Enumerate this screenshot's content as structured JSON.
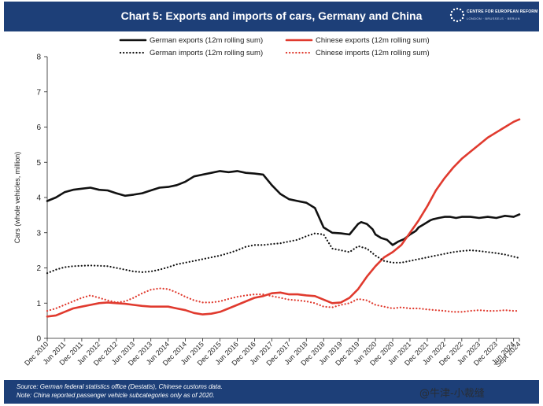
{
  "header": {
    "title": "Chart 5: Exports and imports of cars, Germany and China"
  },
  "logo": {
    "name": "CENTRE FOR EUROPEAN REFORM",
    "cities": "LONDON · BRUSSELS · BERLIN"
  },
  "footer": {
    "source": "Source: German federal statistics office (Destatis), Chinese customs data.",
    "note": "Note: China reported passenger vehicle subcategories only as of 2020."
  },
  "watermark": "@牛津-小裁缝",
  "colors": {
    "brand": "#1d3f78",
    "german": "#111111",
    "chinese": "#e03a2e"
  },
  "chart_data": {
    "type": "line",
    "title": "Chart 5: Exports and imports of cars, Germany and China",
    "xlabel": "",
    "ylabel": "Cars (whole vehicles, million)",
    "ylim": [
      0,
      8
    ],
    "yticks": [
      0,
      1,
      2,
      3,
      4,
      5,
      6,
      7,
      8
    ],
    "grid": false,
    "legend_position": "top",
    "xlim": [
      0,
      164
    ],
    "categories": [
      "Dec 2010",
      "Jun 2011",
      "Dec 2011",
      "Jun 2012",
      "Dec 2012",
      "Jun 2013",
      "Dec 2013",
      "Jun 2014",
      "Dec 2014",
      "Jun 2015",
      "Dec 2015",
      "Jun 2016",
      "Dec 2016",
      "Jun 2017",
      "Dec 2017",
      "Jun 2018",
      "Dec 2018",
      "Jun 2019",
      "Dec 2019",
      "Jun 2020",
      "Dec 2020",
      "Jun 2021",
      "Dec 2021",
      "Jun 2022",
      "Dec 2022",
      "Jun 2023",
      "Dec 2023",
      "Jun 2024",
      "Sept 2024"
    ],
    "series": [
      {
        "name": "German exports (12m rolling sum)",
        "style": "solid",
        "color": "#111111",
        "x": [
          0,
          3,
          6,
          9,
          12,
          15,
          18,
          21,
          24,
          27,
          30,
          33,
          36,
          39,
          42,
          45,
          48,
          51,
          54,
          57,
          60,
          63,
          66,
          69,
          72,
          75,
          78,
          81,
          84,
          87,
          90,
          93,
          96,
          99,
          102,
          105,
          108,
          109,
          111,
          113,
          114,
          116,
          118,
          120,
          122,
          124,
          126,
          128,
          129,
          131,
          133,
          134,
          136,
          138,
          140,
          142,
          144,
          147,
          150,
          153,
          156,
          159,
          162,
          164
        ],
        "y": [
          3.9,
          4.0,
          4.15,
          4.22,
          4.25,
          4.28,
          4.22,
          4.2,
          4.12,
          4.05,
          4.08,
          4.12,
          4.2,
          4.28,
          4.3,
          4.35,
          4.45,
          4.6,
          4.65,
          4.7,
          4.75,
          4.72,
          4.75,
          4.7,
          4.68,
          4.65,
          4.35,
          4.1,
          3.95,
          3.9,
          3.85,
          3.7,
          3.15,
          3.0,
          2.98,
          2.95,
          3.25,
          3.3,
          3.25,
          3.1,
          2.95,
          2.85,
          2.8,
          2.65,
          2.75,
          2.82,
          2.95,
          3.05,
          3.15,
          3.25,
          3.35,
          3.38,
          3.42,
          3.45,
          3.45,
          3.42,
          3.45,
          3.45,
          3.42,
          3.45,
          3.42,
          3.48,
          3.45,
          3.52
        ]
      },
      {
        "name": "Chinese exports (12m rolling sum)",
        "style": "solid",
        "color": "#e03a2e",
        "x": [
          0,
          3,
          6,
          9,
          12,
          15,
          18,
          21,
          24,
          27,
          30,
          33,
          36,
          39,
          42,
          45,
          48,
          51,
          54,
          57,
          60,
          63,
          66,
          69,
          72,
          75,
          78,
          81,
          84,
          87,
          90,
          93,
          96,
          99,
          102,
          105,
          108,
          111,
          114,
          117,
          120,
          123,
          126,
          129,
          132,
          135,
          138,
          141,
          144,
          147,
          150,
          153,
          156,
          159,
          162,
          164
        ],
        "y": [
          0.62,
          0.65,
          0.75,
          0.85,
          0.9,
          0.95,
          1.0,
          1.02,
          1.0,
          0.98,
          0.95,
          0.92,
          0.9,
          0.9,
          0.9,
          0.85,
          0.8,
          0.72,
          0.68,
          0.7,
          0.75,
          0.85,
          0.95,
          1.05,
          1.15,
          1.2,
          1.28,
          1.3,
          1.25,
          1.25,
          1.22,
          1.2,
          1.1,
          1.0,
          1.02,
          1.15,
          1.4,
          1.75,
          2.05,
          2.3,
          2.45,
          2.65,
          3.0,
          3.35,
          3.75,
          4.2,
          4.55,
          4.85,
          5.1,
          5.3,
          5.5,
          5.7,
          5.85,
          6.0,
          6.15,
          6.22
        ]
      },
      {
        "name": "German imports (12m rolling sum)",
        "style": "dotted",
        "color": "#111111",
        "x": [
          0,
          3,
          6,
          9,
          12,
          15,
          18,
          21,
          24,
          27,
          30,
          33,
          36,
          39,
          42,
          45,
          48,
          51,
          54,
          57,
          60,
          63,
          66,
          69,
          72,
          75,
          78,
          81,
          84,
          87,
          90,
          93,
          96,
          99,
          102,
          105,
          108,
          111,
          114,
          117,
          120,
          123,
          126,
          129,
          132,
          135,
          138,
          141,
          144,
          147,
          150,
          153,
          156,
          159,
          162,
          164
        ],
        "y": [
          1.85,
          1.95,
          2.02,
          2.05,
          2.06,
          2.07,
          2.06,
          2.05,
          2.0,
          1.95,
          1.9,
          1.88,
          1.9,
          1.95,
          2.02,
          2.1,
          2.15,
          2.2,
          2.25,
          2.3,
          2.35,
          2.42,
          2.5,
          2.6,
          2.65,
          2.65,
          2.68,
          2.7,
          2.75,
          2.8,
          2.9,
          2.98,
          2.95,
          2.55,
          2.5,
          2.45,
          2.62,
          2.55,
          2.35,
          2.2,
          2.15,
          2.15,
          2.2,
          2.25,
          2.3,
          2.35,
          2.4,
          2.45,
          2.48,
          2.5,
          2.48,
          2.45,
          2.42,
          2.38,
          2.32,
          2.28
        ]
      },
      {
        "name": "Chinese imports (12m rolling sum)",
        "style": "dotted",
        "color": "#e03a2e",
        "x": [
          0,
          3,
          6,
          9,
          12,
          15,
          18,
          21,
          24,
          27,
          30,
          33,
          36,
          39,
          42,
          45,
          48,
          51,
          54,
          57,
          60,
          63,
          66,
          69,
          72,
          75,
          78,
          81,
          84,
          87,
          90,
          93,
          96,
          99,
          102,
          105,
          108,
          111,
          114,
          117,
          120,
          123,
          126,
          129,
          132,
          135,
          138,
          141,
          144,
          147,
          150,
          153,
          156,
          159,
          162,
          164
        ],
        "y": [
          0.78,
          0.85,
          0.95,
          1.05,
          1.15,
          1.22,
          1.15,
          1.08,
          1.02,
          1.05,
          1.15,
          1.28,
          1.38,
          1.42,
          1.4,
          1.3,
          1.18,
          1.08,
          1.02,
          1.02,
          1.05,
          1.12,
          1.18,
          1.22,
          1.25,
          1.25,
          1.2,
          1.15,
          1.1,
          1.08,
          1.05,
          1.0,
          0.9,
          0.88,
          0.95,
          1.0,
          1.12,
          1.08,
          0.95,
          0.9,
          0.85,
          0.88,
          0.85,
          0.85,
          0.82,
          0.8,
          0.78,
          0.75,
          0.75,
          0.78,
          0.8,
          0.78,
          0.78,
          0.8,
          0.78,
          0.78
        ]
      }
    ]
  }
}
